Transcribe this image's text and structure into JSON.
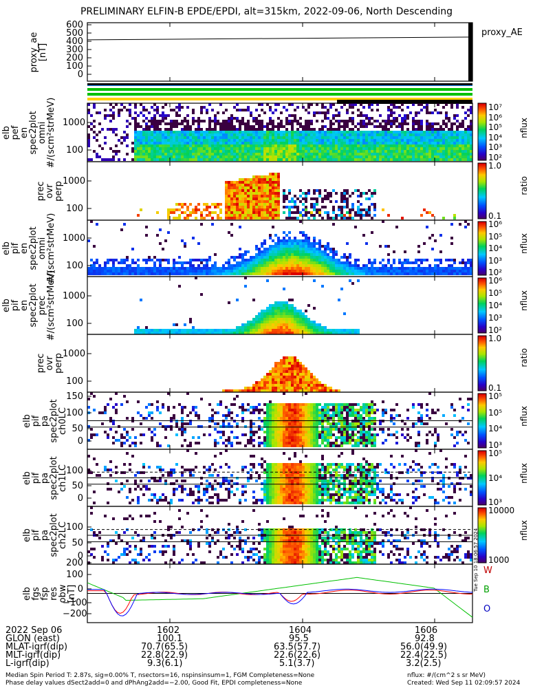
{
  "title": "PRELIMINARY ELFIN-B EPDE/EPDI, alt=315km, 2022-09-06, North Descending",
  "panels": [
    {
      "id": "proxy-ae",
      "ylabel": [
        "proxy_ae",
        "[nT]"
      ],
      "ticks": [
        "600",
        "500",
        "400",
        "300",
        "200",
        "100",
        "0"
      ],
      "legend": "proxy_AE"
    },
    {
      "id": "epde-omni",
      "ylabel": [
        "elb",
        "pef",
        "en",
        "spec2plot",
        "omni",
        "#/(scm²strMeV)"
      ],
      "ticks": [
        "1000",
        "100"
      ],
      "cbticks": [
        "10⁷",
        "10⁶",
        "10⁵",
        "10⁴",
        "10³",
        "10²"
      ],
      "cbunit": "nflux"
    },
    {
      "id": "epde-ratio",
      "ylabel": [
        "prec",
        "ovr",
        "perp"
      ],
      "ticks": [
        "1000",
        "100"
      ],
      "cbticks": [
        "1.0",
        "0.1"
      ],
      "cbunit": "ratio"
    },
    {
      "id": "epdi-omni",
      "ylabel": [
        "elb",
        "pif",
        "en",
        "spec2plot",
        "omni",
        "#/(scm²strMeV)"
      ],
      "ticks": [
        "1000",
        "100"
      ],
      "cbticks": [
        "10⁶",
        "10⁵",
        "10⁴",
        "10³",
        "10²"
      ],
      "cbunit": "nflux"
    },
    {
      "id": "epdi-prec",
      "ylabel": [
        "elb",
        "pif",
        "en",
        "spec2plot",
        "prec",
        "#/(scm²strMeV)"
      ],
      "ticks": [
        "1000",
        "100"
      ],
      "cbticks": [
        "10⁶",
        "10⁵",
        "10⁴",
        "10³",
        "10²"
      ],
      "cbunit": "nflux"
    },
    {
      "id": "epdi-ratio",
      "ylabel": [
        "prec",
        "ovr",
        "perp"
      ],
      "ticks": [
        "1000",
        "100"
      ],
      "cbticks": [
        "1.0",
        "0.1"
      ],
      "cbunit": "ratio"
    },
    {
      "id": "pa-ch0",
      "ylabel": [
        "elb",
        "pif",
        "pa",
        "spec2plot",
        "ch0LC"
      ],
      "ticks": [
        "150",
        "100",
        "50",
        "0"
      ],
      "cbticks": [
        "10⁵",
        "10⁵",
        "10⁴",
        "10³"
      ],
      "cbunit": "nflux"
    },
    {
      "id": "pa-ch1",
      "ylabel": [
        "elb",
        "pif",
        "pa",
        "spec2plot",
        "ch1LC"
      ],
      "ticks": [
        "100",
        "50",
        "0"
      ],
      "cbticks": [
        "10⁵",
        "10⁴",
        "10³"
      ],
      "cbunit": "nflux"
    },
    {
      "id": "pa-ch2",
      "ylabel": [
        "elb",
        "pif",
        "pa",
        "spec2plot",
        "ch2LC"
      ],
      "ticks": [
        "100",
        "50",
        "0"
      ],
      "cbticks": [
        "10000",
        "1000"
      ],
      "cbunit": "nflux"
    },
    {
      "id": "fgs",
      "ylabel": [
        "elb",
        "fgs",
        "fsp",
        "res",
        "obw",
        "[nT]"
      ],
      "ticks": [
        "200",
        "100",
        "0",
        "−100",
        "−200"
      ],
      "legend_w": "W",
      "legend_b": "B",
      "legend_o": "O"
    }
  ],
  "footer": {
    "rows": [
      {
        "label": "2022 Sep 06",
        "v1": "1602",
        "v2": "1604",
        "v3": "1606"
      },
      {
        "label": "GLON (east)",
        "v1": "100.1",
        "v2": "95.5",
        "v3": "92.8"
      },
      {
        "label": "MLAT-igrf(dip)",
        "v1": "70.7(65.5)",
        "v2": "63.5(57.7)",
        "v3": "56.0(49.9)"
      },
      {
        "label": "MLT-igrf(dip)",
        "v1": "22.8(22.9)",
        "v2": "22.6(22.6)",
        "v3": "22.4(22.5)"
      },
      {
        "label": "L-igrf(dip)",
        "v1": "9.3(6.1)",
        "v2": "5.1(3.7)",
        "v3": "3.2(2.5)"
      }
    ],
    "note1": "Median Spin Period T: 2.87s, sig=0.00% T, nsectors=16, nspinsinsum=1, FGM Completeness=None",
    "note2": "Phase delay values dSect2add=0 and dPhAng2add=−2.00, Good Fit, EPDI completeness=None",
    "nflux_unit": "nflux: #/(cm^2 s sr MeV)",
    "created": "Created: Wed Sep 11 02:09:57 2024",
    "side_stamp": "Tue Sep 10 18:06:57 2024"
  },
  "chart_data": [
    {
      "type": "line",
      "panel": "proxy-ae",
      "x_minutes": [
        1600.2,
        1606.9
      ],
      "values": [
        460,
        490
      ],
      "ylim": [
        0,
        650
      ]
    },
    {
      "type": "heatmap",
      "panel": "epde-omni",
      "x_range": [
        1600.2,
        1606.9
      ],
      "yscale": "log",
      "ylim": [
        50,
        5000
      ]
    },
    {
      "type": "heatmap",
      "panel": "epde-ratio",
      "x_range": [
        1600.2,
        1606.9
      ],
      "yscale": "log",
      "ylim": [
        50,
        5000
      ]
    },
    {
      "type": "heatmap",
      "panel": "epdi-omni",
      "x_range": [
        1600.2,
        1606.9
      ],
      "yscale": "log",
      "ylim": [
        50,
        5000
      ]
    },
    {
      "type": "heatmap",
      "panel": "epdi-prec",
      "x_range": [
        1600.2,
        1606.9
      ],
      "yscale": "log",
      "ylim": [
        50,
        5000
      ]
    },
    {
      "type": "heatmap",
      "panel": "epdi-ratio",
      "x_range": [
        1600.2,
        1606.9
      ],
      "yscale": "log",
      "ylim": [
        50,
        5000
      ]
    },
    {
      "type": "heatmap",
      "panel": "pa-ch0",
      "ylim": [
        0,
        180
      ]
    },
    {
      "type": "heatmap",
      "panel": "pa-ch1",
      "ylim": [
        0,
        180
      ]
    },
    {
      "type": "heatmap",
      "panel": "pa-ch2",
      "ylim": [
        0,
        180
      ]
    },
    {
      "type": "line",
      "panel": "fgs",
      "ylim": [
        -220,
        220
      ],
      "series": [
        {
          "name": "W",
          "color": "#ff0000"
        },
        {
          "name": "B",
          "color": "#00c000"
        },
        {
          "name": "O",
          "color": "#0000ff"
        }
      ]
    }
  ]
}
